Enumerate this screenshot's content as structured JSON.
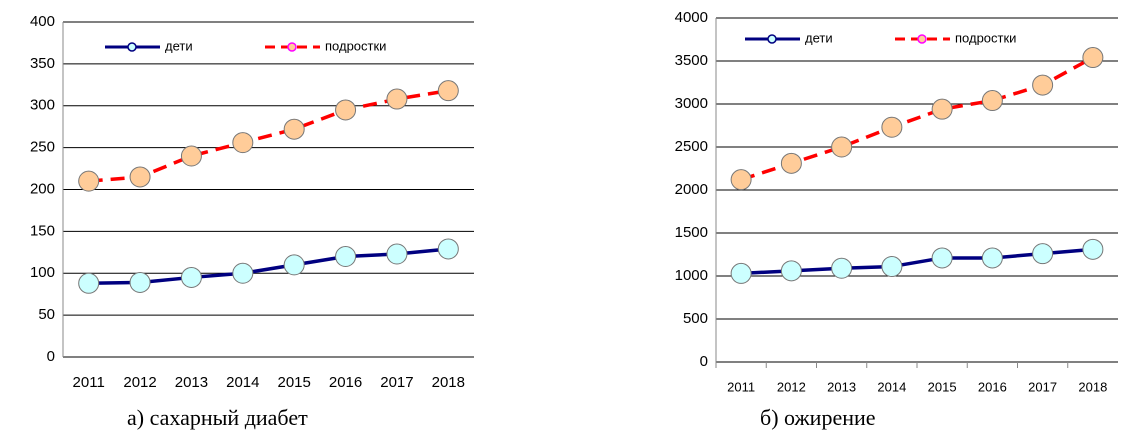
{
  "chart_data": [
    {
      "type": "line",
      "caption": "а) сахарный диабет",
      "categories": [
        "2011",
        "2012",
        "2013",
        "2014",
        "2015",
        "2016",
        "2017",
        "2018"
      ],
      "series": [
        {
          "name": "дети",
          "color": "#000080",
          "marker_fill": "#ccffff",
          "dash": false,
          "values": [
            88,
            89,
            95,
            100,
            110,
            120,
            123,
            129
          ]
        },
        {
          "name": "подростки",
          "color": "#ff0000",
          "marker_fill": "#ffcc99",
          "dash": true,
          "values": [
            210,
            215,
            240,
            256,
            272,
            295,
            308,
            318
          ]
        }
      ],
      "ylim": [
        0,
        400
      ],
      "yticks": [
        0,
        50,
        100,
        150,
        200,
        250,
        300,
        350,
        400
      ],
      "grid": true,
      "legend": "top"
    },
    {
      "type": "line",
      "caption": "б) ожирение",
      "categories": [
        "2011",
        "2012",
        "2013",
        "2014",
        "2015",
        "2016",
        "2017",
        "2018"
      ],
      "series": [
        {
          "name": "дети",
          "color": "#000080",
          "marker_fill": "#ccffff",
          "dash": false,
          "values": [
            1030,
            1060,
            1090,
            1110,
            1210,
            1210,
            1260,
            1310
          ]
        },
        {
          "name": "подростки",
          "color": "#ff0000",
          "marker_fill": "#ffcc99",
          "dash": true,
          "values": [
            2120,
            2310,
            2500,
            2730,
            2940,
            3040,
            3220,
            3540
          ]
        }
      ],
      "ylim": [
        0,
        4000
      ],
      "yticks": [
        0,
        500,
        1000,
        1500,
        2000,
        2500,
        3000,
        3500,
        4000
      ],
      "grid": true,
      "legend": "top"
    }
  ]
}
